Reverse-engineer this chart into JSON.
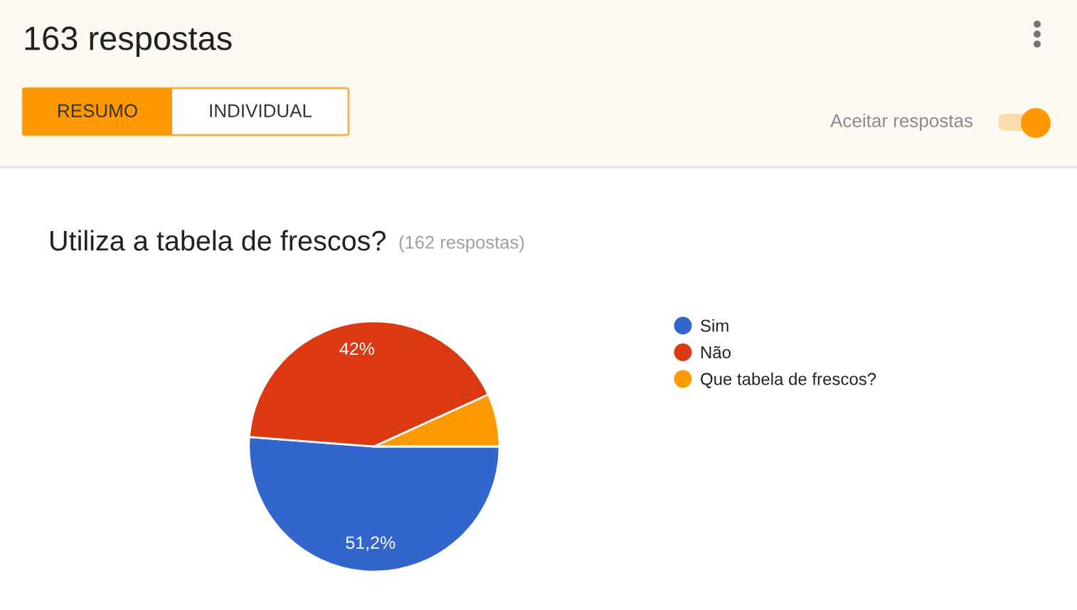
{
  "chart_data": {
    "type": "pie",
    "title": "Utiliza a tabela de frescos?",
    "subtitle": "(162 respostas)",
    "categories": [
      "Sim",
      "Não",
      "Que tabela de frescos?"
    ],
    "values": [
      51.2,
      42,
      6.8
    ],
    "colors": [
      "#3366cc",
      "#dc3912",
      "#ff9900"
    ],
    "value_labels": [
      "51,2%",
      "42%",
      null
    ],
    "legend": "right",
    "annotations": [
      "163 respostas",
      "RESUMO",
      "INDIVIDUAL",
      "Aceitar respostas"
    ]
  }
}
